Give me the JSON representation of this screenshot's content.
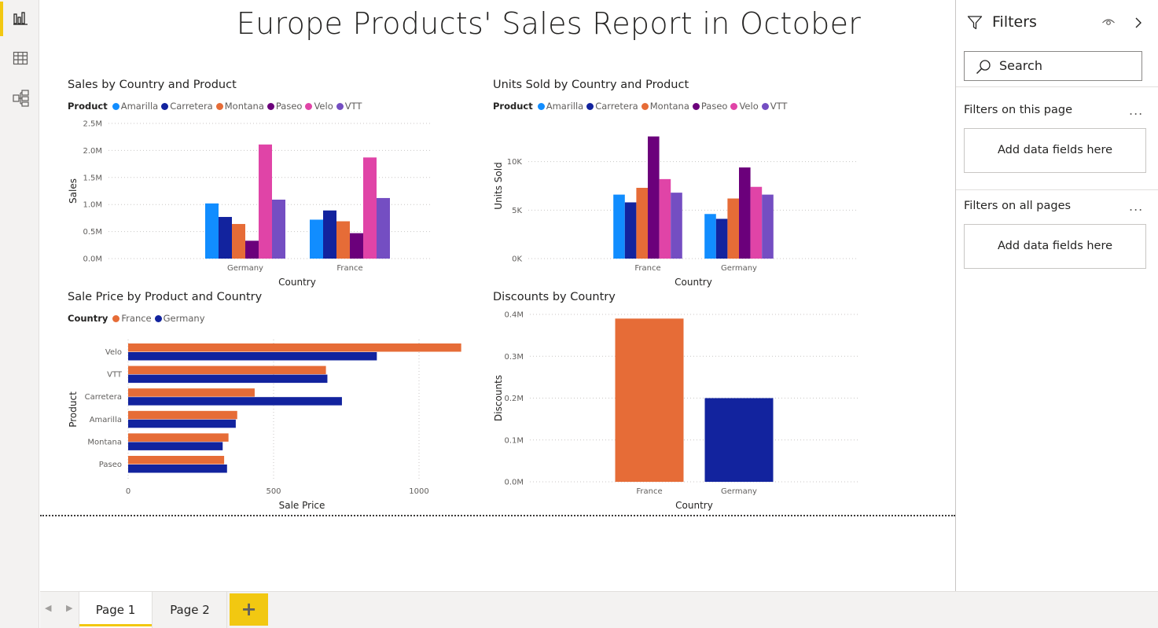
{
  "report": {
    "title": "Europe Products' Sales Report in October"
  },
  "nav": {
    "items": [
      {
        "name": "report-view-icon",
        "active": true
      },
      {
        "name": "data-view-icon",
        "active": false
      },
      {
        "name": "model-view-icon",
        "active": false
      }
    ]
  },
  "filters": {
    "title": "Filters",
    "search_placeholder": "Search",
    "this_page_label": "Filters on this page",
    "all_pages_label": "Filters on all pages",
    "more_label": "...",
    "dropzone_label": "Add data fields here"
  },
  "tabs": {
    "pages": [
      "Page 1",
      "Page 2"
    ],
    "active": "Page 1",
    "add_label": "+"
  },
  "colors": {
    "Amarilla": "#118DFF",
    "Carretera": "#12239E",
    "Montana": "#E66C37",
    "Paseo": "#6B007B",
    "Velo": "#E044A7",
    "VTT": "#744EC2",
    "France": "#E66C37",
    "Germany": "#12239E",
    "accent": "#F2C811"
  },
  "chart_data": [
    {
      "id": "sales",
      "type": "bar",
      "title": "Sales by Country and Product",
      "legend_title": "Product",
      "xlabel": "Country",
      "ylabel": "Sales",
      "categories": [
        "Germany",
        "France"
      ],
      "ylim": [
        0,
        2500000
      ],
      "ytick_values": [
        0,
        500000,
        1000000,
        1500000,
        2000000,
        2500000
      ],
      "ytick_labels": [
        "0.0M",
        "0.5M",
        "1.0M",
        "1.5M",
        "2.0M",
        "2.5M"
      ],
      "series": [
        {
          "name": "Amarilla",
          "values": [
            1020000,
            720000
          ]
        },
        {
          "name": "Carretera",
          "values": [
            770000,
            890000
          ]
        },
        {
          "name": "Montana",
          "values": [
            640000,
            690000
          ]
        },
        {
          "name": "Paseo",
          "values": [
            330000,
            470000
          ]
        },
        {
          "name": "Velo",
          "values": [
            2110000,
            1870000
          ]
        },
        {
          "name": "VTT",
          "values": [
            1090000,
            1120000
          ]
        }
      ]
    },
    {
      "id": "units",
      "type": "bar",
      "title": "Units Sold by Country and Product",
      "legend_title": "Product",
      "xlabel": "Country",
      "ylabel": "Units Sold",
      "categories": [
        "France",
        "Germany"
      ],
      "ylim": [
        0,
        15000
      ],
      "ytick_values": [
        0,
        5000,
        10000
      ],
      "ytick_labels": [
        "0K",
        "5K",
        "10K"
      ],
      "series": [
        {
          "name": "Amarilla",
          "values": [
            6600,
            4600
          ]
        },
        {
          "name": "Carretera",
          "values": [
            5800,
            4100
          ]
        },
        {
          "name": "Montana",
          "values": [
            7300,
            6200
          ]
        },
        {
          "name": "Paseo",
          "values": [
            12600,
            9400
          ]
        },
        {
          "name": "Velo",
          "values": [
            8200,
            7400
          ]
        },
        {
          "name": "VTT",
          "values": [
            6800,
            6600
          ]
        }
      ]
    },
    {
      "id": "price",
      "type": "bar",
      "orientation": "horizontal",
      "title": "Sale Price by Product and Country",
      "legend_title": "Country",
      "xlabel": "Sale Price",
      "ylabel": "Product",
      "categories": [
        "Velo",
        "VTT",
        "Carretera",
        "Amarilla",
        "Montana",
        "Paseo"
      ],
      "xlim": [
        0,
        1200
      ],
      "xtick_values": [
        0,
        500,
        1000
      ],
      "xtick_labels": [
        "0",
        "500",
        "1000"
      ],
      "series": [
        {
          "name": "France",
          "values": [
            1145,
            680,
            435,
            375,
            345,
            330
          ]
        },
        {
          "name": "Germany",
          "values": [
            855,
            685,
            735,
            370,
            325,
            340
          ]
        }
      ]
    },
    {
      "id": "discounts",
      "type": "bar",
      "title": "Discounts by Country",
      "xlabel": "Country",
      "ylabel": "Discounts",
      "categories": [
        "France",
        "Germany"
      ],
      "ylim": [
        0,
        400000
      ],
      "ytick_values": [
        0,
        100000,
        200000,
        300000,
        400000
      ],
      "ytick_labels": [
        "0.0M",
        "0.1M",
        "0.2M",
        "0.3M",
        "0.4M"
      ],
      "series": [
        {
          "values": [
            390000,
            200000
          ]
        }
      ]
    }
  ]
}
